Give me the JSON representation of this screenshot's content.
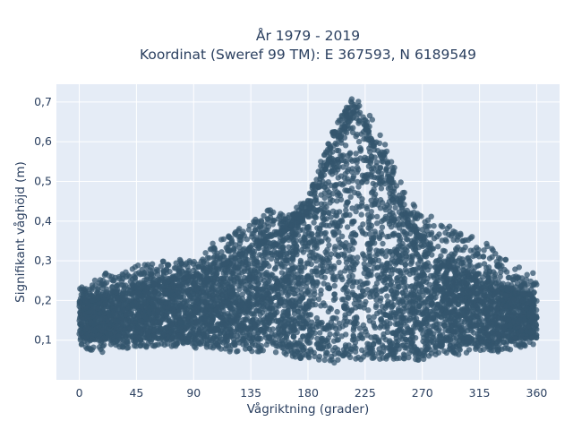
{
  "chart_data": {
    "type": "scatter",
    "title_line1": "År 1979 - 2019",
    "title_line2": "Koordinat (Sweref 99 TM): E 367593, N 6189549",
    "xlabel": "Vågriktning (grader)",
    "ylabel": "Signifikant våghöjd (m)",
    "xlim": [
      -18,
      378
    ],
    "ylim": [
      0.0,
      0.745
    ],
    "x_ticks": [
      0,
      45,
      90,
      135,
      180,
      225,
      270,
      315,
      360
    ],
    "x_tick_labels": [
      "0",
      "45",
      "90",
      "135",
      "180",
      "225",
      "270",
      "315",
      "360"
    ],
    "y_ticks": [
      0.1,
      0.2,
      0.3,
      0.4,
      0.5,
      0.6,
      0.7
    ],
    "y_tick_labels": [
      "0,1",
      "0,2",
      "0,3",
      "0,4",
      "0,5",
      "0,6",
      "0,7"
    ],
    "grid": true,
    "marker_color": "#34566e",
    "background_color": "#e5ecf6",
    "series": [
      {
        "envelope": {
          "x": [
            0,
            10,
            20,
            30,
            45,
            60,
            75,
            90,
            105,
            120,
            135,
            150,
            165,
            180,
            190,
            200,
            210,
            215,
            222,
            230,
            240,
            250,
            260,
            270,
            285,
            300,
            315,
            330,
            345,
            360
          ],
          "upper": [
            0.24,
            0.25,
            0.27,
            0.27,
            0.29,
            0.3,
            0.31,
            0.3,
            0.35,
            0.37,
            0.4,
            0.43,
            0.42,
            0.46,
            0.55,
            0.63,
            0.69,
            0.71,
            0.7,
            0.66,
            0.6,
            0.52,
            0.45,
            0.43,
            0.4,
            0.37,
            0.36,
            0.32,
            0.29,
            0.27
          ],
          "lower": [
            0.09,
            0.07,
            0.07,
            0.08,
            0.08,
            0.08,
            0.08,
            0.08,
            0.08,
            0.07,
            0.07,
            0.07,
            0.06,
            0.05,
            0.05,
            0.04,
            0.05,
            0.05,
            0.05,
            0.05,
            0.05,
            0.05,
            0.05,
            0.05,
            0.06,
            0.06,
            0.07,
            0.07,
            0.08,
            0.09
          ],
          "dense_upper": [
            0.19,
            0.2,
            0.21,
            0.22,
            0.23,
            0.24,
            0.25,
            0.26,
            0.28,
            0.3,
            0.33,
            0.36,
            0.38,
            0.42,
            0.5,
            0.58,
            0.64,
            0.66,
            0.65,
            0.6,
            0.54,
            0.46,
            0.39,
            0.35,
            0.3,
            0.27,
            0.25,
            0.23,
            0.22,
            0.21
          ],
          "dense_lower": [
            0.11,
            0.1,
            0.1,
            0.1,
            0.1,
            0.1,
            0.1,
            0.1,
            0.1,
            0.09,
            0.09,
            0.09,
            0.08,
            0.07,
            0.07,
            0.07,
            0.07,
            0.07,
            0.07,
            0.07,
            0.07,
            0.07,
            0.07,
            0.07,
            0.08,
            0.08,
            0.09,
            0.09,
            0.1,
            0.11
          ]
        }
      }
    ]
  }
}
